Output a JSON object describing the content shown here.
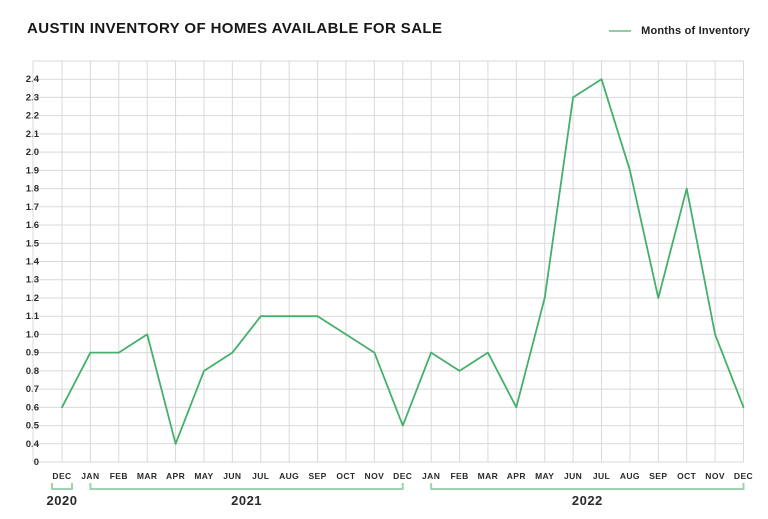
{
  "header": {
    "title": "AUSTIN INVENTORY OF HOMES AVAILABLE FOR SALE"
  },
  "legend": {
    "label": "Months of Inventory"
  },
  "colors": {
    "line": "#45b06c",
    "bracket": "#9ed3af",
    "grid": "#d9d9d9",
    "title_text": "#181818",
    "axis_text": "#2b2b2b"
  },
  "chart_data": {
    "type": "line",
    "title": "AUSTIN INVENTORY OF HOMES AVAILABLE FOR SALE",
    "categories": [
      "DEC",
      "JAN",
      "FEB",
      "MAR",
      "APR",
      "MAY",
      "JUN",
      "JUL",
      "AUG",
      "SEP",
      "OCT",
      "NOV",
      "DEC",
      "JAN",
      "FEB",
      "MAR",
      "APR",
      "MAY",
      "JUN",
      "JUL",
      "AUG",
      "SEP",
      "OCT",
      "NOV",
      "DEC"
    ],
    "series": [
      {
        "name": "Months of Inventory",
        "values": [
          0.6,
          0.9,
          0.9,
          1.0,
          0.4,
          0.8,
          0.9,
          1.1,
          1.1,
          1.1,
          1.0,
          0.9,
          0.5,
          0.9,
          0.8,
          0.9,
          0.6,
          1.2,
          2.3,
          2.4,
          1.9,
          1.2,
          1.8,
          1.0,
          0.6
        ]
      }
    ],
    "year_groups": [
      {
        "label": "2020",
        "start": 0,
        "end": 0
      },
      {
        "label": "2021",
        "start": 1,
        "end": 12
      },
      {
        "label": "2022",
        "start": 13,
        "end": 24
      }
    ],
    "y_tick_labels": [
      "2.4",
      "2.3",
      "2.2",
      "2.1",
      "2.0",
      "1.9",
      "1.8",
      "1.7",
      "1.6",
      "1.5",
      "1.4",
      "1.3",
      "1.2",
      "1.1",
      "1.0",
      "0.9",
      "0.8",
      "0.7",
      "0.6",
      "0.5",
      "0.4"
    ],
    "y_baseline_label": "0",
    "ylim": [
      0.4,
      2.4
    ],
    "xlabel": "",
    "ylabel": "",
    "grid": true,
    "legend_position": "top-right"
  }
}
